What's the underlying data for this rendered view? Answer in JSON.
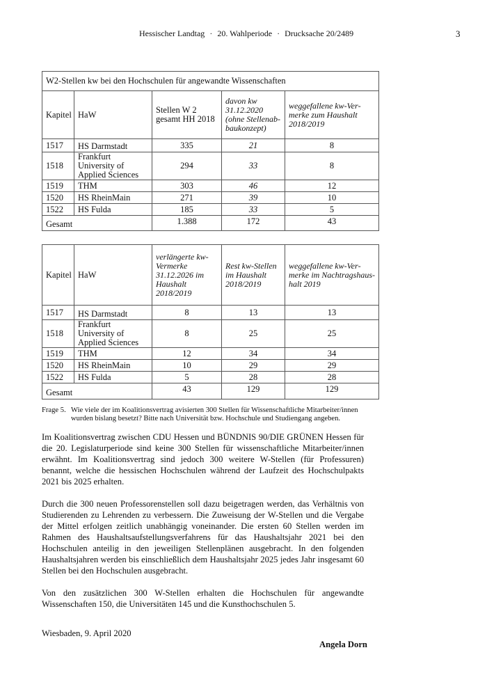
{
  "header": {
    "parliament": "Hessischer Landtag",
    "period": "20. Wahlperiode",
    "document": "Drucksache 20/2489",
    "separator": "·",
    "page": "3"
  },
  "table1": {
    "title": "W2-Stellen kw bei den Hochschulen für angewandte Wissenschaften",
    "headers": [
      "Kapitel",
      "HaW",
      "Stellen W 2 gesamt HH 2018",
      "davon kw 31.12.2020 (ohne Stellenab­baukonzept)",
      "weggefallene kw-Ver­merke zum Haushalt 2018/2019"
    ],
    "rows": [
      [
        "1517",
        "HS Darmstadt",
        "335",
        "21",
        "8"
      ],
      [
        "1518",
        "Frankfurt University of Applied Sciences",
        "294",
        "33",
        "8"
      ],
      [
        "1519",
        "THM",
        "303",
        "46",
        "12"
      ],
      [
        "1520",
        "HS RheinMain",
        "271",
        "39",
        "10"
      ],
      [
        "1522",
        "HS Fulda",
        "185",
        "33",
        "5"
      ]
    ],
    "total": [
      "Gesamt",
      "1.388",
      "172",
      "43"
    ]
  },
  "table2": {
    "headers": [
      "Kapitel",
      "HaW",
      "verlängerte kw-Vermerke 31.12.2026 im Haushalt 2018/2019",
      "Rest kw-Stellen im Haushalt 2018/2019",
      "weggefallene kw-Ver­merke im Nachtragshaus­halt 2019"
    ],
    "rows": [
      [
        "1517",
        "HS Darmstadt",
        "8",
        "13",
        "13"
      ],
      [
        "1518",
        "Frankfurt University of Applied Sciences",
        "8",
        "25",
        "25"
      ],
      [
        "1519",
        "THM",
        "12",
        "34",
        "34"
      ],
      [
        "1520",
        "HS RheinMain",
        "10",
        "29",
        "29"
      ],
      [
        "1522",
        "HS Fulda",
        "5",
        "28",
        "28"
      ]
    ],
    "total": [
      "Gesamt",
      "43",
      "129",
      "129"
    ]
  },
  "question": {
    "label": "Frage 5.",
    "text": "Wie viele der im Koalitionsvertrag avisierten 300 Stellen für Wissenschaftliche Mitarbeiter/innen wurden bislang besetzt? Bitte nach Universität bzw. Hochschule und Studiengang angeben."
  },
  "answer": [
    "Im Koalitionsvertrag zwischen CDU Hessen und BÜNDNIS 90/DIE GRÜNEN Hessen für die 20. Legislaturperiode sind keine 300 Stellen für wissenschaftliche Mitarbeiter/innen erwähnt. Im Koalitionsvertrag sind jedoch 300 weitere W-Stellen (für Professuren) benannt, welche die hessi­schen Hochschulen während der Laufzeit des Hochschulpakts 2021 bis 2025 erhalten.",
    "Durch die 300 neuen Professorenstellen soll dazu beigetragen werden, das Verhältnis von Studie­renden zu Lehrenden zu verbessern. Die Zuweisung der W-Stellen und die Vergabe der Mittel erfolgen zeitlich unabhängig voneinander. Die ersten 60 Stellen werden im Rahmen des Haus­haltsaufstellungsverfahrens für das Haushaltsjahr 2021 bei den Hochschulen anteilig in den jewei­ligen Stellenplänen ausgebracht. In den folgenden Haushaltsjahren werden bis einschließlich dem Haushaltsjahr 2025 jedes Jahr insgesamt 60 Stellen bei den Hochschulen ausgebracht.",
    "Von den zusätzlichen 300 W-Stellen erhalten die Hochschulen für angewandte Wissenschaften 150, die Universitäten 145 und die Kunsthochschulen 5."
  ],
  "closing": {
    "place_date": "Wiesbaden, 9. April 2020",
    "signature": "Angela Dorn"
  }
}
